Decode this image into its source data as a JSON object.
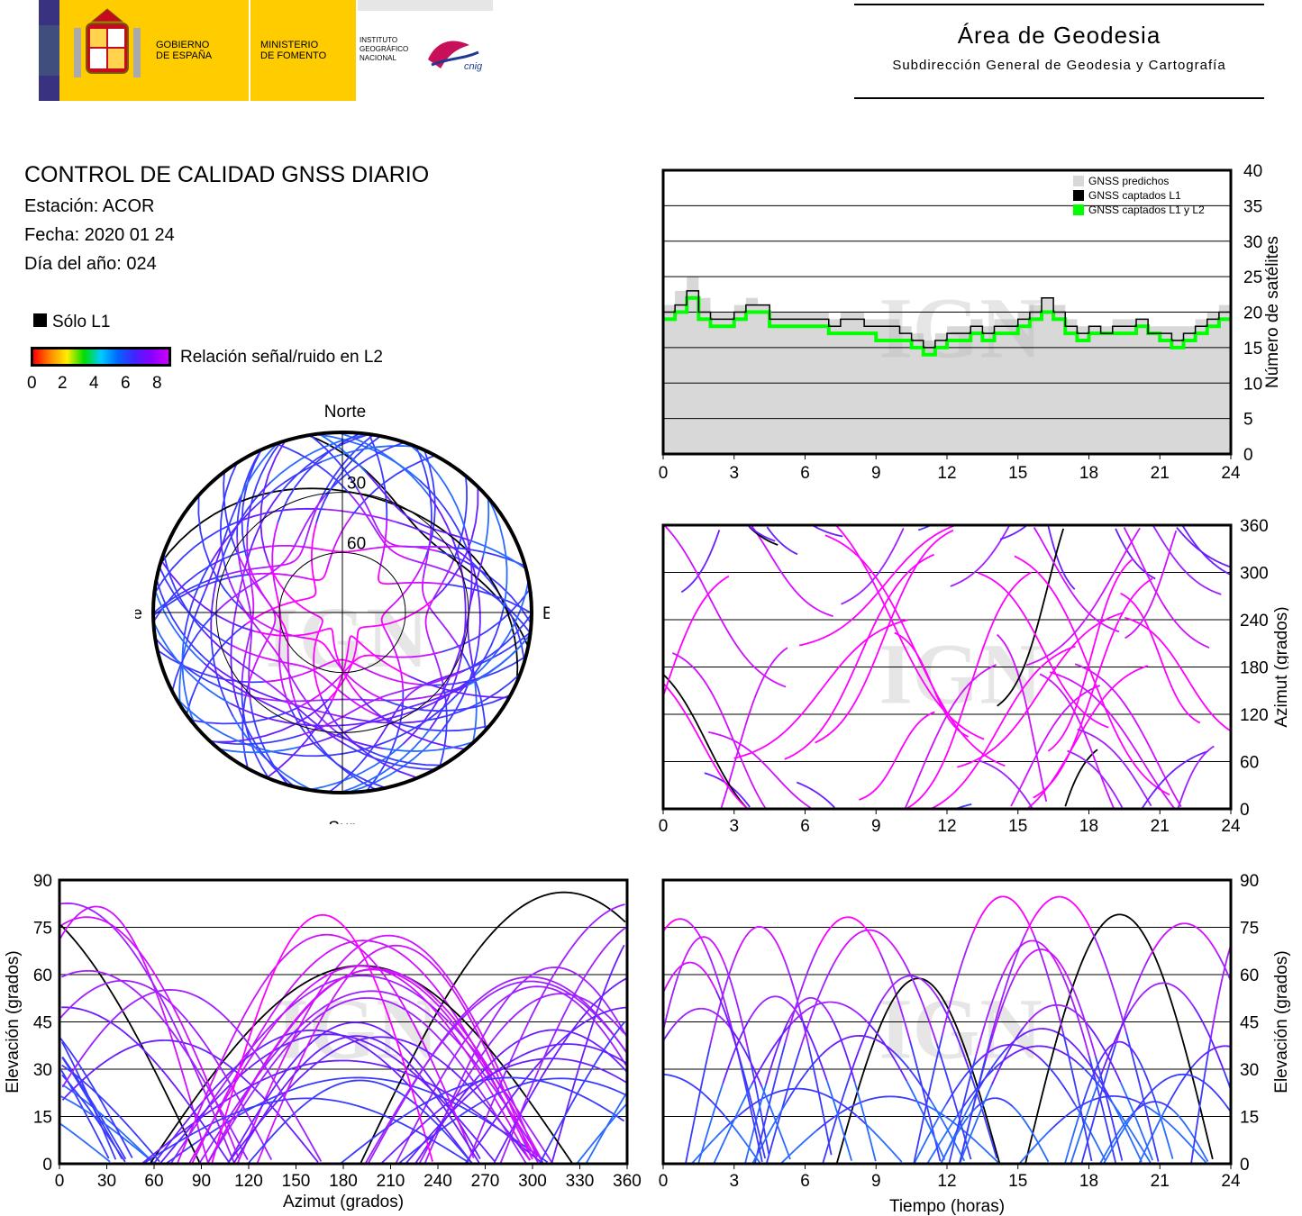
{
  "header": {
    "gobierno": "GOBIERNO\nDE ESPAÑA",
    "ministerio": "MINISTERIO\nDE FOMENTO",
    "instituto": "INSTITUTO\nGEOGRÁFICO\nNACIONAL",
    "cnig": "cnig",
    "area_title": "Área de Geodesia",
    "area_subtitle": "Subdirección General de Geodesia y Cartografía"
  },
  "report": {
    "title": "CONTROL DE CALIDAD GNSS DIARIO",
    "station": "Estación: ACOR",
    "date": "Fecha: 2020 01 24",
    "doy": "Día del año: 024"
  },
  "legend": {
    "solo_l1": "Sólo L1",
    "snr_label": "Relación señal/ruido en L2",
    "snr_ticks": [
      "0",
      "2",
      "4",
      "6",
      "8"
    ],
    "snr_colors": [
      "#ff0000",
      "#ff8800",
      "#ffee00",
      "#00dd00",
      "#00ccff",
      "#0066ff",
      "#4422ff",
      "#8800ff",
      "#cc00ff"
    ]
  },
  "watermark": "IGN",
  "colors": {
    "predicted": "#d8d8d8",
    "l1": "#000000",
    "l1l2": "#00ff00",
    "track_high": "#ff00ff",
    "track_low": "#2222ff",
    "grid": "#000000"
  },
  "chart_data": [
    {
      "id": "sat-count",
      "type": "line",
      "xlabel": "",
      "ylabel": "Número de satélites",
      "xlim": [
        0,
        24
      ],
      "ylim": [
        0,
        40
      ],
      "xticks": [
        "0",
        "3",
        "6",
        "9",
        "12",
        "15",
        "18",
        "21",
        "24"
      ],
      "yticks": [
        "0",
        "5",
        "10",
        "15",
        "20",
        "25",
        "30",
        "35",
        "40"
      ],
      "legend": [
        "GNSS predichos",
        "GNSS captados L1",
        "GNSS captados L1 y L2"
      ],
      "x": [
        0,
        0.5,
        1,
        1.5,
        2,
        2.5,
        3,
        3.5,
        4,
        4.5,
        5,
        5.5,
        6,
        6.5,
        7,
        7.5,
        8,
        8.5,
        9,
        9.5,
        10,
        10.5,
        11,
        11.5,
        12,
        12.5,
        13,
        13.5,
        14,
        14.5,
        15,
        15.5,
        16,
        16.5,
        17,
        17.5,
        18,
        18.5,
        19,
        19.5,
        20,
        20.5,
        21,
        21.5,
        22,
        22.5,
        23,
        23.5,
        24
      ],
      "series": [
        {
          "name": "GNSS predichos",
          "values": [
            21,
            23,
            25,
            22,
            20,
            20,
            21,
            22,
            21,
            20,
            20,
            20,
            20,
            20,
            19,
            20,
            20,
            19,
            19,
            19,
            18,
            17,
            16,
            17,
            18,
            18,
            19,
            18,
            19,
            19,
            20,
            21,
            22,
            21,
            19,
            18,
            18,
            18,
            19,
            19,
            19,
            18,
            18,
            18,
            18,
            19,
            20,
            21,
            20
          ]
        },
        {
          "name": "GNSS captados L1",
          "values": [
            20,
            21,
            23,
            20,
            19,
            19,
            20,
            21,
            21,
            19,
            19,
            19,
            19,
            19,
            18,
            19,
            19,
            18,
            18,
            18,
            17,
            16,
            15,
            16,
            17,
            17,
            18,
            17,
            18,
            18,
            19,
            20,
            22,
            20,
            18,
            17,
            18,
            17,
            18,
            18,
            19,
            17,
            17,
            16,
            17,
            18,
            19,
            20,
            19
          ]
        },
        {
          "name": "GNSS captados L1 y L2",
          "values": [
            19,
            20,
            22,
            19,
            18,
            18,
            19,
            20,
            20,
            18,
            18,
            18,
            18,
            18,
            17,
            17,
            17,
            17,
            16,
            16,
            16,
            15,
            14,
            15,
            16,
            16,
            17,
            16,
            17,
            17,
            18,
            19,
            20,
            19,
            17,
            16,
            17,
            17,
            17,
            17,
            18,
            17,
            16,
            15,
            16,
            17,
            18,
            19,
            19
          ]
        }
      ]
    },
    {
      "id": "skyplot",
      "type": "scatter",
      "directions": {
        "north": "Norte",
        "south": "Sur",
        "west": "Oeste",
        "east": "Este"
      },
      "rings": [
        "30",
        "60"
      ]
    },
    {
      "id": "azimuth-time",
      "type": "scatter",
      "ylabel": "Azimut (grados)",
      "xlim": [
        0,
        24
      ],
      "ylim": [
        0,
        360
      ],
      "xticks": [
        "0",
        "3",
        "6",
        "9",
        "12",
        "15",
        "18",
        "21",
        "24"
      ],
      "yticks": [
        "0",
        "60",
        "120",
        "180",
        "240",
        "300",
        "360"
      ]
    },
    {
      "id": "elev-azimuth",
      "type": "scatter",
      "xlabel": "Azimut (grados)",
      "ylabel": "Elevación (grados)",
      "xlim": [
        0,
        360
      ],
      "ylim": [
        0,
        90
      ],
      "xticks": [
        "0",
        "30",
        "60",
        "90",
        "120",
        "150",
        "180",
        "210",
        "240",
        "270",
        "300",
        "330",
        "360"
      ],
      "yticks": [
        "0",
        "15",
        "30",
        "45",
        "60",
        "75",
        "90"
      ]
    },
    {
      "id": "elev-time",
      "type": "scatter",
      "xlabel": "Tiempo (horas)",
      "ylabel": "Elevación (grados)",
      "xlim": [
        0,
        24
      ],
      "ylim": [
        0,
        90
      ],
      "xticks": [
        "0",
        "3",
        "6",
        "9",
        "12",
        "15",
        "18",
        "21",
        "24"
      ],
      "yticks": [
        "0",
        "15",
        "30",
        "45",
        "60",
        "75",
        "90"
      ]
    }
  ]
}
